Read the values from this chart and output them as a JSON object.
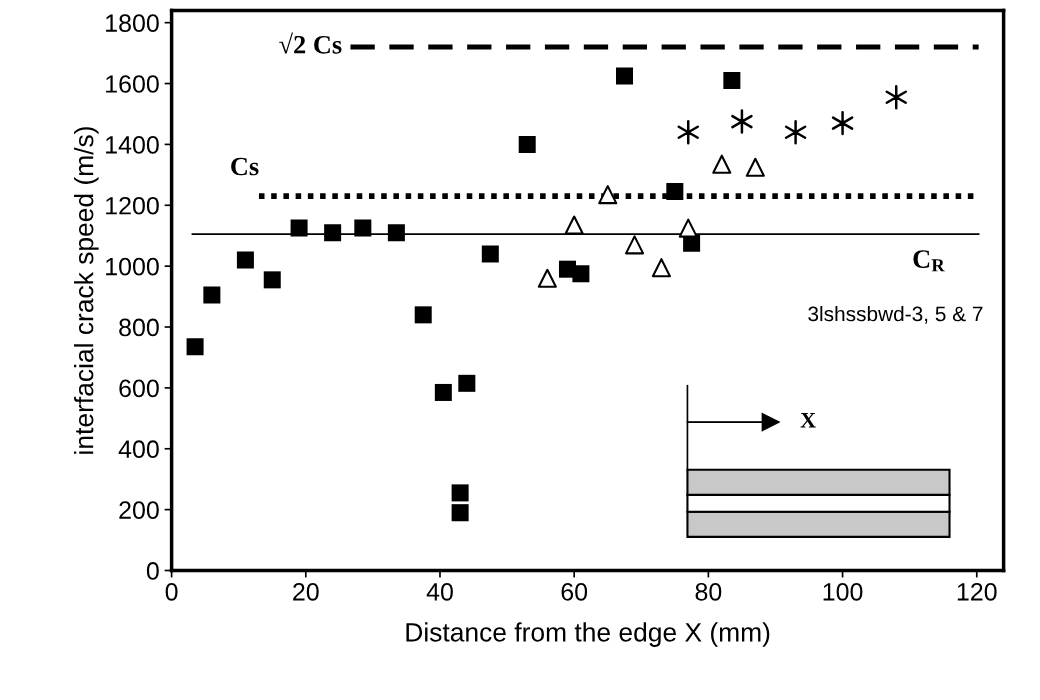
{
  "chart_data": {
    "type": "scatter",
    "xlabel": "Distance from the edge X (mm)",
    "ylabel": "interfacial crack speed (m/s)",
    "xlim": [
      0,
      124
    ],
    "ylim": [
      0,
      1840
    ],
    "xticks": [
      0,
      20,
      40,
      60,
      80,
      100,
      120
    ],
    "yticks": [
      0,
      200,
      400,
      600,
      800,
      1000,
      1200,
      1400,
      1600,
      1800
    ],
    "grid": false,
    "legend": false,
    "series": [
      {
        "color": "#000000",
        "marker": "square",
        "x": [
          3.5,
          6,
          11,
          15,
          19,
          24,
          28.5,
          33.5,
          37.5,
          40.5,
          44,
          43,
          43,
          47.5,
          53,
          59,
          61,
          67.5,
          75,
          77.5,
          83.5
        ],
        "values": [
          735,
          905,
          1020,
          955,
          1125,
          1110,
          1125,
          1110,
          840,
          585,
          615,
          255,
          190,
          1040,
          1400,
          990,
          975,
          1625,
          1245,
          1075,
          1610
        ]
      },
      {
        "color": "#000000",
        "marker": "triangle",
        "x": [
          56,
          60,
          65,
          69,
          73,
          77,
          82,
          87
        ],
        "values": [
          960,
          1135,
          1235,
          1070,
          995,
          1125,
          1335,
          1325
        ]
      },
      {
        "color": "#000000",
        "marker": "cross",
        "x": [
          77,
          85,
          93,
          100,
          108
        ],
        "values": [
          1440,
          1475,
          1440,
          1470,
          1555
        ]
      }
    ],
    "ref_lines": [
      {
        "axis": "y",
        "value": 1720,
        "label": "√2 Cs",
        "line_style": "dashed",
        "color": "#000000"
      },
      {
        "axis": "y",
        "value": 1230,
        "label": "Cs",
        "line_style": "dotted",
        "color": "#000000"
      },
      {
        "axis": "y",
        "value": 1105,
        "label": "C$_{R}$",
        "line_style": "solid",
        "color": "#000000"
      }
    ],
    "annotations": [
      "3lshssbwd-3, 5 & 7",
      "X"
    ]
  }
}
